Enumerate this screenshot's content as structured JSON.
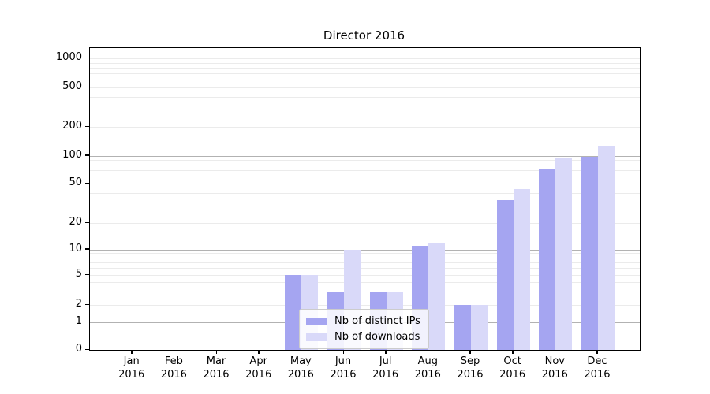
{
  "chart_data": {
    "type": "bar",
    "title": "Director 2016",
    "categories": [
      "Jan",
      "Feb",
      "Mar",
      "Apr",
      "May",
      "Jun",
      "Jul",
      "Aug",
      "Sep",
      "Oct",
      "Nov",
      "Dec"
    ],
    "category_year": "2016",
    "series": [
      {
        "name": "Nb of distinct IPs",
        "color": "#a5a5f1",
        "values": [
          0,
          0,
          0,
          0,
          5,
          3,
          3,
          11,
          2,
          34,
          72,
          97
        ]
      },
      {
        "name": "Nb of downloads",
        "color": "#d9d9f9",
        "values": [
          0,
          0,
          0,
          0,
          5,
          10,
          3,
          12,
          2,
          44,
          95,
          127
        ]
      }
    ],
    "yticks": {
      "values": [
        0,
        1,
        2,
        5,
        10,
        20,
        50,
        100,
        200,
        500,
        1000
      ],
      "labels": [
        "0",
        "1",
        "2",
        "5",
        "10",
        "20",
        "50",
        "100",
        "200",
        "500",
        "1000"
      ]
    },
    "major_grid_values": [
      1,
      10,
      100
    ],
    "minor_grid_values": [
      2,
      3,
      4,
      5,
      6,
      7,
      8,
      9,
      20,
      30,
      40,
      50,
      60,
      70,
      80,
      90,
      200,
      300,
      400,
      500,
      600,
      700,
      800,
      900,
      1000
    ],
    "ylim": [
      0,
      1400
    ],
    "yscale": "log-like with 0 baseline",
    "grid": "horizontal",
    "legend_position": "lower center inside plot"
  }
}
